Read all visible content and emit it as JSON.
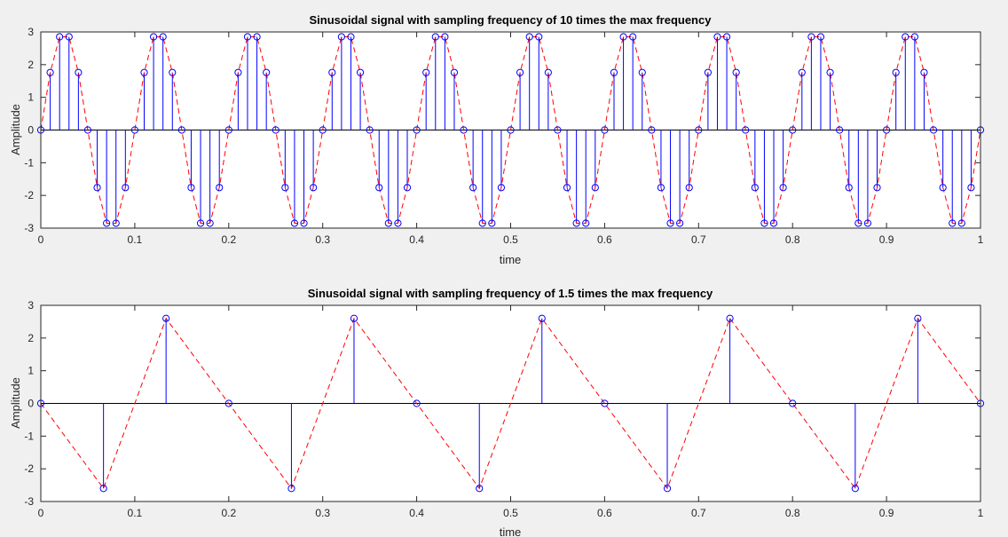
{
  "chart_data": [
    {
      "type": "stem",
      "title": "Sinusoidal signal with sampling frequency of 10 times the max frequency",
      "xlabel": "time",
      "ylabel": "Amplitude",
      "xlim": [
        0,
        1
      ],
      "ylim": [
        -3,
        3
      ],
      "xticks": [
        "0",
        "0.1",
        "0.2",
        "0.3",
        "0.4",
        "0.5",
        "0.6",
        "0.7",
        "0.8",
        "0.9",
        "1"
      ],
      "yticks": [
        "-3",
        "-2",
        "-1",
        "0",
        "1",
        "2",
        "3"
      ],
      "grid": false,
      "stem_color": "#0000ff",
      "line_color": "#ff0000",
      "x_step": 0.01,
      "values": [
        0,
        1.76,
        2.85,
        2.85,
        1.76,
        0,
        -1.76,
        -2.85,
        -2.85,
        -1.76,
        0,
        1.76,
        2.85,
        2.85,
        1.76,
        0,
        -1.76,
        -2.85,
        -2.85,
        -1.76,
        0,
        1.76,
        2.85,
        2.85,
        1.76,
        0,
        -1.76,
        -2.85,
        -2.85,
        -1.76,
        0,
        1.76,
        2.85,
        2.85,
        1.76,
        0,
        -1.76,
        -2.85,
        -2.85,
        -1.76,
        0,
        1.76,
        2.85,
        2.85,
        1.76,
        0,
        -1.76,
        -2.85,
        -2.85,
        -1.76,
        0,
        1.76,
        2.85,
        2.85,
        1.76,
        0,
        -1.76,
        -2.85,
        -2.85,
        -1.76,
        0,
        1.76,
        2.85,
        2.85,
        1.76,
        0,
        -1.76,
        -2.85,
        -2.85,
        -1.76,
        0,
        1.76,
        2.85,
        2.85,
        1.76,
        0,
        -1.76,
        -2.85,
        -2.85,
        -1.76,
        0,
        1.76,
        2.85,
        2.85,
        1.76,
        0,
        -1.76,
        -2.85,
        -2.85,
        -1.76,
        0,
        1.76,
        2.85,
        2.85,
        1.76,
        0,
        -1.76,
        -2.85,
        -2.85,
        -1.76,
        0
      ]
    },
    {
      "type": "stem",
      "title": "Sinusoidal signal with sampling frequency of 1.5 times the max frequency",
      "xlabel": "time",
      "ylabel": "Amplitude",
      "xlim": [
        0,
        1
      ],
      "ylim": [
        -3,
        3
      ],
      "xticks": [
        "0",
        "0.1",
        "0.2",
        "0.3",
        "0.4",
        "0.5",
        "0.6",
        "0.7",
        "0.8",
        "0.9",
        "1"
      ],
      "yticks": [
        "-3",
        "-2",
        "-1",
        "0",
        "1",
        "2",
        "3"
      ],
      "grid": false,
      "stem_color": "#0000ff",
      "line_color": "#ff0000",
      "x": [
        0,
        0.0667,
        0.1333,
        0.2,
        0.2667,
        0.3333,
        0.4,
        0.4667,
        0.5333,
        0.6,
        0.6667,
        0.7333,
        0.8,
        0.8667,
        0.9333,
        1
      ],
      "values": [
        0,
        -2.6,
        2.6,
        0,
        -2.6,
        2.6,
        0,
        -2.6,
        2.6,
        0,
        -2.6,
        2.6,
        0,
        -2.6,
        2.6,
        0
      ]
    }
  ]
}
